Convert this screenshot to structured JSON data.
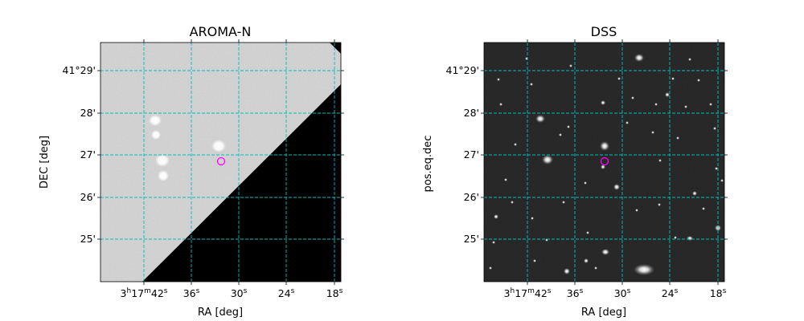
{
  "chart_data": [
    {
      "type": "image",
      "title": "AROMA-N",
      "xlabel": "RA [deg]",
      "ylabel": "DEC [deg]",
      "x_ticks": [
        {
          "value": "3h17m42s",
          "parts": [
            {
              "t": "3"
            },
            {
              "t": "h",
              "sup": true
            },
            {
              "t": "17"
            },
            {
              "t": "m",
              "sup": true
            },
            {
              "t": "42"
            },
            {
              "t": "s",
              "sup": true
            }
          ]
        },
        {
          "value": "36s",
          "parts": [
            {
              "t": "36"
            },
            {
              "t": "s",
              "sup": true
            }
          ]
        },
        {
          "value": "30s",
          "parts": [
            {
              "t": "30"
            },
            {
              "t": "s",
              "sup": true
            }
          ]
        },
        {
          "value": "24s",
          "parts": [
            {
              "t": "24"
            },
            {
              "t": "s",
              "sup": true
            }
          ]
        },
        {
          "value": "18s",
          "parts": [
            {
              "t": "18"
            },
            {
              "t": "s",
              "sup": true
            }
          ]
        }
      ],
      "y_ticks": [
        "41°29'",
        "28'",
        "27'",
        "26'",
        "25'"
      ],
      "grid": true,
      "grid_color": "#00c0c0",
      "background": "mostly light gray sky with a black triangular no-data region at lower right",
      "marker": {
        "shape": "circle",
        "color": "#ff00ff",
        "x": "3h17m32.1s",
        "y": "41°26.85'"
      }
    },
    {
      "type": "image",
      "title": "DSS",
      "xlabel": "RA [deg]",
      "ylabel": "pos.eq.dec",
      "x_ticks": [
        {
          "value": "3h17m42s",
          "parts": [
            {
              "t": "3"
            },
            {
              "t": "h",
              "sup": true
            },
            {
              "t": "17"
            },
            {
              "t": "m",
              "sup": true
            },
            {
              "t": "42"
            },
            {
              "t": "s",
              "sup": true
            }
          ]
        },
        {
          "value": "36s",
          "parts": [
            {
              "t": "36"
            },
            {
              "t": "s",
              "sup": true
            }
          ]
        },
        {
          "value": "30s",
          "parts": [
            {
              "t": "30"
            },
            {
              "t": "s",
              "sup": true
            }
          ]
        },
        {
          "value": "24s",
          "parts": [
            {
              "t": "24"
            },
            {
              "t": "s",
              "sup": true
            }
          ]
        },
        {
          "value": "18s",
          "parts": [
            {
              "t": "18"
            },
            {
              "t": "s",
              "sup": true
            }
          ]
        }
      ],
      "y_ticks": [
        "41°29'",
        "28'",
        "27'",
        "26'",
        "25'"
      ],
      "grid": true,
      "grid_color": "#00c0c0",
      "background": "dark sky with many point-like stars and galaxies",
      "marker": {
        "shape": "circle",
        "color": "#ff00ff",
        "x": "3h17m32.1s",
        "y": "41°26.85'"
      }
    }
  ]
}
